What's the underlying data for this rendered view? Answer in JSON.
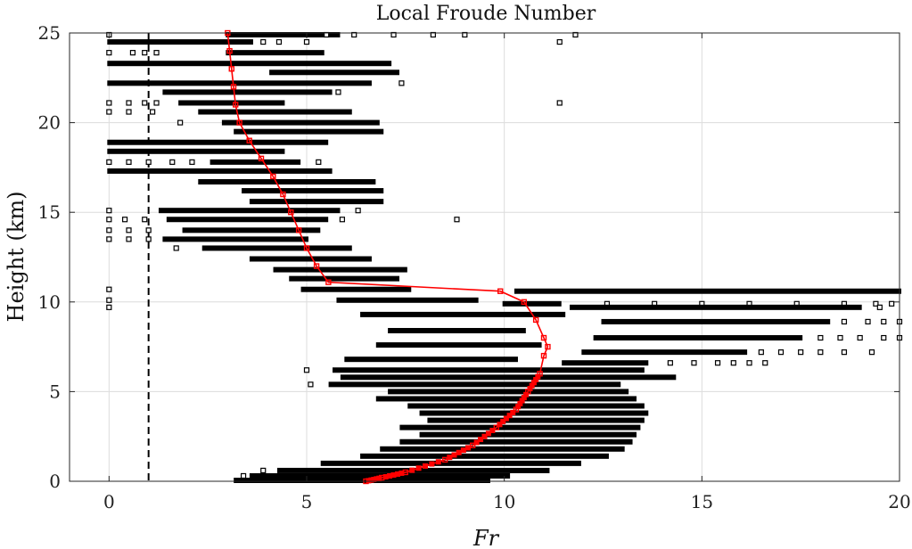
{
  "chart_data": {
    "type": "scatter",
    "title": "Local Froude Number",
    "xlabel": "Fr",
    "ylabel": "Height  (km)",
    "xlim": [
      -1,
      20
    ],
    "ylim": [
      0,
      25
    ],
    "xticks": [
      0,
      5,
      10,
      15,
      20
    ],
    "yticks": [
      0,
      5,
      10,
      15,
      20,
      25
    ],
    "grid": true,
    "reference_line": {
      "x": 1,
      "style": "dashed",
      "color": "#000000"
    },
    "scatter_color": "#000000",
    "mean_color": "#ff0000",
    "scatter_rows": [
      {
        "y": 24.9,
        "x0": 3.0,
        "x1": 5.8,
        "sparse": [
          0.0,
          5.5,
          6.2,
          7.2,
          8.2,
          9.0,
          11.8
        ]
      },
      {
        "y": 24.5,
        "x0": 0.0,
        "x1": 3.6,
        "sparse": [
          3.9,
          4.3,
          5.0,
          11.4
        ]
      },
      {
        "y": 23.9,
        "x0": 3.0,
        "x1": 5.4,
        "sparse": [
          0.0,
          0.6,
          0.9,
          1.2
        ]
      },
      {
        "y": 23.3,
        "x0": 0.0,
        "x1": 7.1,
        "sparse": []
      },
      {
        "y": 22.8,
        "x0": 4.1,
        "x1": 7.3,
        "sparse": []
      },
      {
        "y": 22.2,
        "x0": 0.0,
        "x1": 6.6,
        "sparse": [
          7.4
        ]
      },
      {
        "y": 21.7,
        "x0": 1.4,
        "x1": 5.6,
        "sparse": [
          5.8
        ]
      },
      {
        "y": 21.1,
        "x0": 1.8,
        "x1": 4.4,
        "sparse": [
          0.0,
          0.5,
          0.9,
          1.2,
          11.4
        ]
      },
      {
        "y": 20.6,
        "x0": 2.3,
        "x1": 6.1,
        "sparse": [
          0.0,
          0.5,
          1.1
        ]
      },
      {
        "y": 20.0,
        "x0": 2.9,
        "x1": 6.8,
        "sparse": [
          1.8
        ]
      },
      {
        "y": 19.5,
        "x0": 3.2,
        "x1": 6.9,
        "sparse": []
      },
      {
        "y": 18.9,
        "x0": 0.0,
        "x1": 5.5,
        "sparse": []
      },
      {
        "y": 18.4,
        "x0": 0.0,
        "x1": 4.4,
        "sparse": []
      },
      {
        "y": 17.8,
        "x0": 2.6,
        "x1": 4.8,
        "sparse": [
          0.0,
          0.5,
          1.0,
          1.6,
          2.1,
          5.3
        ]
      },
      {
        "y": 17.3,
        "x0": 0.0,
        "x1": 5.6,
        "sparse": []
      },
      {
        "y": 16.7,
        "x0": 2.3,
        "x1": 6.7,
        "sparse": []
      },
      {
        "y": 16.2,
        "x0": 3.4,
        "x1": 6.9,
        "sparse": []
      },
      {
        "y": 15.6,
        "x0": 3.6,
        "x1": 6.9,
        "sparse": []
      },
      {
        "y": 15.1,
        "x0": 1.3,
        "x1": 5.8,
        "sparse": [
          0.0,
          6.3
        ]
      },
      {
        "y": 14.6,
        "x0": 1.5,
        "x1": 5.5,
        "sparse": [
          0.0,
          0.4,
          0.9,
          5.9,
          8.8
        ]
      },
      {
        "y": 14.0,
        "x0": 1.9,
        "x1": 5.3,
        "sparse": [
          0.0,
          0.5,
          1.0
        ]
      },
      {
        "y": 13.5,
        "x0": 1.4,
        "x1": 5.0,
        "sparse": [
          0.0,
          0.5,
          1.0
        ]
      },
      {
        "y": 13.0,
        "x0": 2.4,
        "x1": 6.1,
        "sparse": [
          1.7
        ]
      },
      {
        "y": 12.4,
        "x0": 3.6,
        "x1": 6.6,
        "sparse": []
      },
      {
        "y": 11.8,
        "x0": 4.2,
        "x1": 7.5,
        "sparse": []
      },
      {
        "y": 11.3,
        "x0": 4.6,
        "x1": 7.3,
        "sparse": []
      },
      {
        "y": 10.7,
        "x0": 4.9,
        "x1": 7.6,
        "sparse": [
          0.0
        ]
      },
      {
        "y": 10.6,
        "x0": 10.3,
        "x1": 20.0,
        "sparse": []
      },
      {
        "y": 10.1,
        "x0": 5.8,
        "x1": 9.3,
        "sparse": [
          0.0
        ]
      },
      {
        "y": 9.9,
        "x0": 10.0,
        "x1": 11.4,
        "sparse": [
          12.6,
          13.8,
          15.0,
          16.2,
          17.4,
          18.6,
          19.4,
          19.8
        ]
      },
      {
        "y": 9.7,
        "x0": 11.7,
        "x1": 19.0,
        "sparse": [
          0.0,
          19.5
        ]
      },
      {
        "y": 9.3,
        "x0": 6.4,
        "x1": 11.5,
        "sparse": []
      },
      {
        "y": 8.9,
        "x0": 12.5,
        "x1": 18.2,
        "sparse": [
          18.6,
          19.2,
          19.6,
          20.0
        ]
      },
      {
        "y": 8.4,
        "x0": 7.1,
        "x1": 10.5,
        "sparse": []
      },
      {
        "y": 8.0,
        "x0": 12.3,
        "x1": 17.5,
        "sparse": [
          18.0,
          18.5,
          19.0,
          19.6,
          20.0
        ]
      },
      {
        "y": 7.6,
        "x0": 6.8,
        "x1": 10.9,
        "sparse": []
      },
      {
        "y": 7.2,
        "x0": 12.0,
        "x1": 16.1,
        "sparse": [
          16.5,
          17.0,
          17.5,
          18.0,
          18.6,
          19.3
        ]
      },
      {
        "y": 6.8,
        "x0": 6.0,
        "x1": 10.3,
        "sparse": []
      },
      {
        "y": 6.6,
        "x0": 11.5,
        "x1": 13.6,
        "sparse": [
          14.2,
          14.8,
          15.4,
          15.8,
          16.2,
          16.6
        ]
      },
      {
        "y": 6.2,
        "x0": 5.7,
        "x1": 13.5,
        "sparse": [
          5.0
        ]
      },
      {
        "y": 5.8,
        "x0": 5.9,
        "x1": 14.3,
        "sparse": []
      },
      {
        "y": 5.4,
        "x0": 5.6,
        "x1": 12.9,
        "sparse": [
          5.1
        ]
      },
      {
        "y": 5.0,
        "x0": 7.1,
        "x1": 13.1,
        "sparse": []
      },
      {
        "y": 4.6,
        "x0": 6.8,
        "x1": 13.3,
        "sparse": []
      },
      {
        "y": 4.2,
        "x0": 7.6,
        "x1": 13.5,
        "sparse": []
      },
      {
        "y": 3.8,
        "x0": 7.9,
        "x1": 13.6,
        "sparse": []
      },
      {
        "y": 3.4,
        "x0": 8.1,
        "x1": 13.5,
        "sparse": []
      },
      {
        "y": 3.0,
        "x0": 7.4,
        "x1": 13.4,
        "sparse": []
      },
      {
        "y": 2.6,
        "x0": 7.9,
        "x1": 13.3,
        "sparse": []
      },
      {
        "y": 2.2,
        "x0": 7.4,
        "x1": 13.2,
        "sparse": []
      },
      {
        "y": 1.8,
        "x0": 6.9,
        "x1": 13.0,
        "sparse": []
      },
      {
        "y": 1.4,
        "x0": 6.4,
        "x1": 12.6,
        "sparse": []
      },
      {
        "y": 1.0,
        "x0": 5.4,
        "x1": 11.9,
        "sparse": []
      },
      {
        "y": 0.6,
        "x0": 4.3,
        "x1": 11.1,
        "sparse": [
          3.9
        ]
      },
      {
        "y": 0.3,
        "x0": 3.6,
        "x1": 10.1,
        "sparse": [
          3.4
        ]
      },
      {
        "y": 0.05,
        "x0": 3.2,
        "x1": 9.6,
        "sparse": []
      }
    ],
    "mean_profile": [
      {
        "x": 3.0,
        "y": 25.0
      },
      {
        "x": 3.05,
        "y": 24.0
      },
      {
        "x": 3.1,
        "y": 23.0
      },
      {
        "x": 3.15,
        "y": 22.0
      },
      {
        "x": 3.2,
        "y": 21.0
      },
      {
        "x": 3.3,
        "y": 20.0
      },
      {
        "x": 3.55,
        "y": 19.0
      },
      {
        "x": 3.85,
        "y": 18.0
      },
      {
        "x": 4.15,
        "y": 17.0
      },
      {
        "x": 4.4,
        "y": 16.0
      },
      {
        "x": 4.6,
        "y": 15.0
      },
      {
        "x": 4.8,
        "y": 14.0
      },
      {
        "x": 5.0,
        "y": 13.0
      },
      {
        "x": 5.25,
        "y": 12.0
      },
      {
        "x": 5.55,
        "y": 11.1
      },
      {
        "x": 9.9,
        "y": 10.6
      },
      {
        "x": 10.5,
        "y": 10.0
      },
      {
        "x": 10.8,
        "y": 9.0
      },
      {
        "x": 11.0,
        "y": 8.0
      },
      {
        "x": 11.1,
        "y": 7.5
      },
      {
        "x": 11.0,
        "y": 7.0
      },
      {
        "x": 10.9,
        "y": 6.0
      },
      {
        "x": 10.6,
        "y": 5.0
      },
      {
        "x": 10.3,
        "y": 4.0
      },
      {
        "x": 9.8,
        "y": 3.0
      },
      {
        "x": 9.2,
        "y": 2.0
      },
      {
        "x": 8.5,
        "y": 1.2
      },
      {
        "x": 7.5,
        "y": 0.5
      },
      {
        "x": 6.9,
        "y": 0.2
      },
      {
        "x": 6.5,
        "y": 0.0
      }
    ]
  }
}
